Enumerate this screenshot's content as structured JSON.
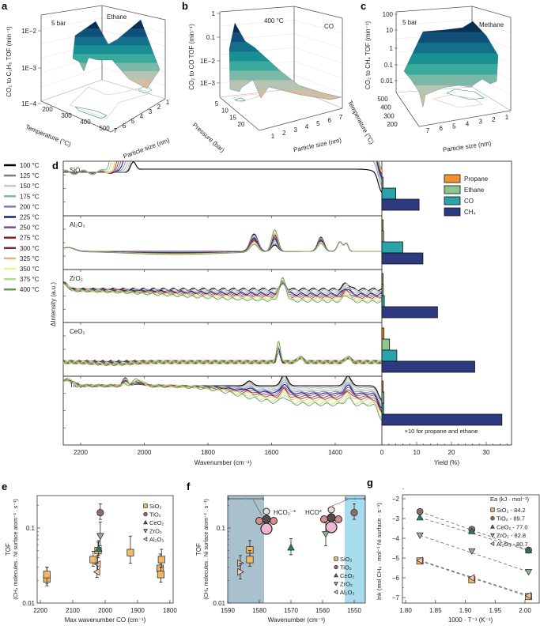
{
  "panel_labels": {
    "a": "a",
    "b": "b",
    "c": "c",
    "d": "d",
    "e": "e",
    "f": "f",
    "g": "g"
  },
  "colors": {
    "propane": "#f0932b",
    "ethane": "#8cc68a",
    "co": "#2aa3ab",
    "ch4": "#2e3a80",
    "sio2": "#f2b766",
    "tio2": "#8c6e64",
    "ceo2": "#1f7f80",
    "zro2": "#8db38a",
    "al2o3": "#f5c8b0",
    "shade_hco2": "#a9c1cc",
    "shade_hco": "#a8dced"
  },
  "chart_data": [
    {
      "panel": "a",
      "type": "surface3d",
      "annotations": [
        "5 bar",
        "Ethane"
      ],
      "zlabel": "CO₂ to C₂H₆ TOF (min⁻¹)",
      "zticks": [
        "1E−4",
        "1E−3",
        "1E−2"
      ],
      "xlabel": "Temperature (°C)",
      "xticks": [
        "200",
        "300",
        "400",
        "500"
      ],
      "ylabel": "Particle size (nm)",
      "yticks": [
        "7",
        "6",
        "5",
        "4",
        "3",
        "2",
        "1"
      ]
    },
    {
      "panel": "b",
      "type": "surface3d",
      "annotations": [
        "400 °C",
        "CO"
      ],
      "zlabel": "CO₂ to CO TOF (min⁻¹)",
      "zticks": [
        "1E−3",
        "1E−2",
        "0.1",
        "1"
      ],
      "xlabel": "Pressure (bar)",
      "xticks": [
        "5",
        "10",
        "15",
        "20"
      ],
      "ylabel": "Particle size (nm)",
      "yticks": [
        "1",
        "2",
        "3",
        "4",
        "5",
        "6",
        "7"
      ]
    },
    {
      "panel": "c",
      "type": "surface3d",
      "annotations": [
        "5 bar",
        "Methane"
      ],
      "zlabel": "CO₂ to CH₄ TOF (min⁻¹)",
      "zticks": [
        "0.01",
        "0.1",
        "1",
        "10",
        "100"
      ],
      "xlabel": "Temperature (°C)",
      "xticks": [
        "500",
        "400",
        "300",
        "200"
      ],
      "ylabel": "Particle size (nm)",
      "yticks": [
        "7",
        "6",
        "5",
        "4",
        "3",
        "2",
        "1"
      ]
    },
    {
      "panel": "d",
      "type": "line",
      "xlabel": "Wavenumber (cm⁻¹)",
      "ylabel": "ΔIntensity (a.u.)",
      "xticks": [
        "2200",
        "2000",
        "1800",
        "1600",
        "1400"
      ],
      "xlim": [
        2255,
        1250
      ],
      "supports": [
        "SiO₂",
        "Al₂O₃",
        "ZrO₂",
        "CeO₂",
        "TiO₂"
      ],
      "legend": [
        {
          "label": "100 °C",
          "color": "#000000"
        },
        {
          "label": "125 °C",
          "color": "#7f7f7f"
        },
        {
          "label": "150 °C",
          "color": "#c8c8c8"
        },
        {
          "label": "175 °C",
          "color": "#7fb5ad"
        },
        {
          "label": "200 °C",
          "color": "#7b78b8"
        },
        {
          "label": "225 °C",
          "color": "#1a1a8c"
        },
        {
          "label": "250 °C",
          "color": "#7a4a8c"
        },
        {
          "label": "275 °C",
          "color": "#9c1a1a"
        },
        {
          "label": "300 °C",
          "color": "#6e3030"
        },
        {
          "label": "325 °C",
          "color": "#e8b080"
        },
        {
          "label": "350 °C",
          "color": "#f5f08a"
        },
        {
          "label": "375 °C",
          "color": "#a8e080"
        },
        {
          "label": "400 °C",
          "color": "#5e9a5e"
        }
      ]
    },
    {
      "panel": "d-yield",
      "type": "bar",
      "orientation": "horizontal",
      "categories": [
        "SiO₂",
        "Al₂O₃",
        "ZrO₂",
        "CeO₂",
        "TiO₂"
      ],
      "series": [
        {
          "name": "Propane",
          "color": "#f0932b",
          "values": [
            0,
            0.3,
            0.3,
            0.6,
            0.3
          ]
        },
        {
          "name": "Ethane",
          "color": "#8cc68a",
          "values": [
            0.2,
            0.5,
            0.4,
            2.2,
            0.6
          ]
        },
        {
          "name": "CO",
          "color": "#2aa3ab",
          "values": [
            4.0,
            6.0,
            0.7,
            4.3,
            0.5
          ]
        },
        {
          "name": "CH₄",
          "color": "#2e3a80",
          "values": [
            10.7,
            11.8,
            16.0,
            26.7,
            34.5
          ]
        }
      ],
      "xlabel": "Yield (%)",
      "xticks": [
        "0",
        "10",
        "20",
        "30"
      ],
      "xlim": [
        0,
        37
      ],
      "note": "×10 for propane and ethane"
    },
    {
      "panel": "e",
      "type": "scatter",
      "yscale": "log",
      "xlabel": "Max wavenumber CO (cm⁻¹)",
      "ylabel": "TOF",
      "ylabel2": "(CH₄ molecules . Ni surface atom⁻¹ . s⁻¹)",
      "xticks": [
        "2200",
        "2100",
        "2000",
        "1900",
        "1800"
      ],
      "yticks": [
        "0.01",
        "0.1"
      ],
      "xlim": [
        2210,
        1790
      ],
      "ylim": [
        0.01,
        0.27
      ],
      "series": [
        {
          "name": "SiO₂",
          "marker": "square",
          "color": "#f2b766",
          "points": [
            [
              2180,
              0.021,
              0.017,
              0.03
            ],
            [
              2180,
              0.024,
              0.018,
              0.03
            ],
            [
              2037,
              0.038,
              0.031,
              0.049
            ],
            [
              2022,
              0.05,
              0.04,
              0.065
            ],
            [
              1922,
              0.047,
              0.034,
              0.078
            ],
            [
              1830,
              0.029,
              0.022,
              0.045
            ],
            [
              1826,
              0.038,
              0.03,
              0.052
            ],
            [
              1828,
              0.024,
              0.019,
              0.03
            ]
          ]
        },
        {
          "name": "TiO₂",
          "marker": "circle",
          "color": "#8c6e64",
          "points": [
            [
              2015,
              0.16,
              0.13,
              0.21
            ]
          ]
        },
        {
          "name": "CeO₂",
          "marker": "up",
          "color": "#1f7f80",
          "points": [
            [
              2020,
              0.053,
              0.043,
              0.068
            ]
          ]
        },
        {
          "name": "ZrO₂",
          "marker": "down",
          "color": "#8db38a",
          "points": [
            [
              2015,
              0.078,
              0.058,
              0.12
            ]
          ]
        },
        {
          "name": "Al₂O₃",
          "marker": "left",
          "color": "#f5c8b0",
          "points": [
            [
              2023,
              0.033,
              0.025,
              0.043
            ],
            [
              2025,
              0.026,
              0.022,
              0.034
            ]
          ]
        }
      ]
    },
    {
      "panel": "f",
      "type": "scatter",
      "yscale": "log",
      "xlabel": "Wavenumber (cm⁻¹)",
      "ylabel": "TOF",
      "ylabel2": "(CH₄ molecules . Ni surface atom⁻¹ . s⁻¹)",
      "xticks": [
        "1590",
        "1580",
        "1570",
        "1560",
        "1550"
      ],
      "yticks": [
        "0.01",
        "0.1"
      ],
      "xlim": [
        1590,
        1546.5
      ],
      "ylim": [
        0.01,
        0.27
      ],
      "regions": [
        {
          "label": "HCO₂⁻*",
          "from": 1590,
          "to": 1578.5
        },
        {
          "label": "HCO*",
          "from": 1553,
          "to": 1546.5
        }
      ],
      "series": [
        {
          "name": "SiO₂",
          "marker": "square",
          "color": "#f2b766",
          "points": [
            [
              1583,
              0.051,
              0.038,
              0.068
            ],
            [
              1583,
              0.038,
              0.031,
              0.05
            ]
          ]
        },
        {
          "name": "TiO₂",
          "marker": "circle",
          "color": "#8c6e64",
          "points": [
            [
              1550,
              0.16,
              0.13,
              0.21
            ]
          ]
        },
        {
          "name": "CeO₂",
          "marker": "up",
          "color": "#1f7f80",
          "points": [
            [
              1570,
              0.055,
              0.044,
              0.072
            ]
          ]
        },
        {
          "name": "ZrO₂",
          "marker": "down",
          "color": "#8db38a",
          "points": [
            [
              1559,
              0.083,
              0.058,
              0.12
            ]
          ]
        },
        {
          "name": "Al₂O₃",
          "marker": "left",
          "plot_marker": "right",
          "color": "#f5c8b0",
          "points": [
            [
              1586,
              0.034,
              0.026,
              0.043
            ],
            [
              1586,
              0.026,
              0.021,
              0.034
            ]
          ]
        }
      ]
    },
    {
      "panel": "g",
      "type": "scatter",
      "xlabel": "1000 · T⁻¹ (K⁻¹)",
      "ylabel": "lnk (mol CH₄ · mol⁻¹ Ni surface · s⁻¹)",
      "xticks": [
        "1.80",
        "1.85",
        "1.90",
        "1.95",
        "2.00"
      ],
      "yticks": [
        "−7",
        "−6",
        "−5",
        "−4",
        "−3",
        "−2"
      ],
      "xlim": [
        1.795,
        2.024
      ],
      "ylim": [
        -7.3,
        -1.8
      ],
      "legend_title": "Ea (kJ · mol⁻¹)",
      "series": [
        {
          "name": "SiO₂ - 84.2",
          "marker": "square",
          "color": "#f2b766",
          "points": [
            [
              1.824,
              -5.15
            ],
            [
              1.911,
              -6.1
            ],
            [
              2.006,
              -6.95
            ]
          ]
        },
        {
          "name": "TiO₂ - 89.7",
          "marker": "circle",
          "color": "#8c6e64",
          "points": [
            [
              1.824,
              -2.65
            ],
            [
              1.911,
              -3.55
            ],
            [
              2.006,
              -4.6
            ]
          ]
        },
        {
          "name": "CeO₂ - 77.0",
          "marker": "up",
          "color": "#1f7f80",
          "points": [
            [
              1.824,
              -2.95
            ],
            [
              1.911,
              -3.65
            ],
            [
              2.006,
              -4.62
            ]
          ]
        },
        {
          "name": "ZrO₂ - 82.8",
          "marker": "down",
          "color": "#8db38a",
          "points": [
            [
              1.824,
              -3.85
            ],
            [
              1.911,
              -4.65
            ],
            [
              2.006,
              -5.7
            ]
          ]
        },
        {
          "name": "Al₂O₃ - 80.7",
          "marker": "left",
          "color": "#f5c8b0",
          "points": [
            [
              1.824,
              -5.12
            ],
            [
              1.911,
              -6.0
            ],
            [
              2.006,
              -6.9
            ]
          ]
        }
      ]
    }
  ]
}
